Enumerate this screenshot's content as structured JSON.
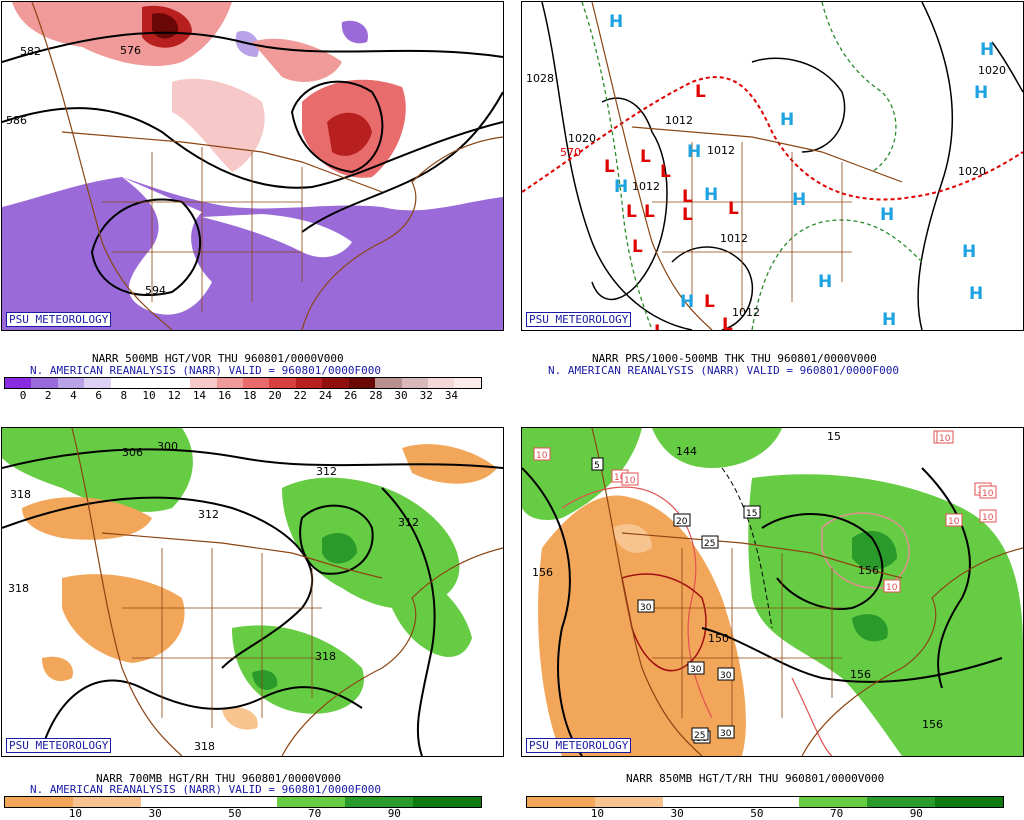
{
  "panels": [
    {
      "id": "vor",
      "badge": "PSU METEOROLOGY",
      "caption1": "NARR 500MB HGT/VOR THU 960801/0000V000",
      "caption2": "N. AMERICAN REANALYSIS (NARR) VALID = 960801/0000F000",
      "colorbar": {
        "colors": [
          "#8a2be2",
          "#9a6ad8",
          "#b9a2e8",
          "#dcd0f4",
          "#ffffff",
          "#ffffff",
          "#ffffff",
          "#f6c8c8",
          "#f09a9a",
          "#e86c6c",
          "#d84040",
          "#b82020",
          "#901010",
          "#6a0808",
          "#b89090",
          "#d8b8b8",
          "#f4d8d8",
          "#fbeaea"
        ],
        "ticks": [
          "0",
          "2",
          "4",
          "6",
          "8",
          "10",
          "12",
          "14",
          "16",
          "18",
          "20",
          "22",
          "24",
          "26",
          "28",
          "30",
          "32",
          "34"
        ]
      },
      "labels": [
        "582",
        "576",
        "586",
        "594"
      ]
    },
    {
      "id": "prs",
      "badge": "PSU METEOROLOGY",
      "caption1": "NARR PRS/1000-500MB THK THU 960801/0000V000",
      "caption2": "N. AMERICAN REANALYSIS (NARR) VALID = 960801/0000F000",
      "labels": [
        "1028",
        "1020",
        "1012",
        "1012",
        "1012",
        "1012",
        "1012",
        "1020",
        "1020",
        "570"
      ]
    },
    {
      "id": "rh700",
      "badge": "PSU METEOROLOGY",
      "caption1": "NARR 700MB HGT/RH THU 960801/0000V000",
      "caption2": "N. AMERICAN REANALYSIS (NARR) VALID = 960801/0000F000",
      "colorbar": {
        "colors": [
          "#f2a65a",
          "#f7c490",
          "#ffffff",
          "#ffffff",
          "#66cc44",
          "#2a9a2a",
          "#0f7a0f"
        ],
        "ticks": [
          "10",
          "30",
          "50",
          "70",
          "90"
        ]
      },
      "labels": [
        "306",
        "300",
        "312",
        "312",
        "318",
        "312",
        "318",
        "318",
        "318"
      ]
    },
    {
      "id": "t850",
      "badge": "PSU METEOROLOGY",
      "caption1": "NARR 850MB HGT/T/RH THU 960801/0000V000",
      "caption2": "",
      "colorbar": {
        "colors": [
          "#f2a65a",
          "#f7c490",
          "#ffffff",
          "#ffffff",
          "#66cc44",
          "#2a9a2a",
          "#0f7a0f"
        ],
        "ticks": [
          "10",
          "30",
          "50",
          "70",
          "90"
        ]
      },
      "labels": [
        "144",
        "15",
        "156",
        "150",
        "156",
        "156",
        "156"
      ],
      "boxed": [
        "10",
        "10",
        "10",
        "10",
        "10",
        "5",
        "20",
        "25",
        "30",
        "30",
        "30",
        "30",
        "30",
        "25",
        "15",
        "10",
        "10",
        "10",
        "10",
        "10"
      ]
    }
  ]
}
